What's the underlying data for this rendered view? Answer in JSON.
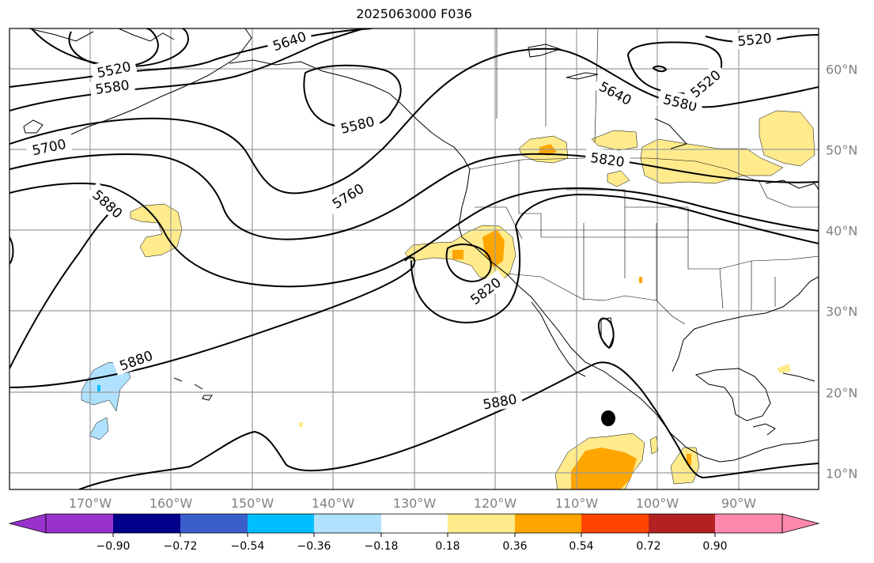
{
  "title": "2025063000 F036",
  "lon_labels": [
    "170°W",
    "160°W",
    "150°W",
    "140°W",
    "130°W",
    "120°W",
    "110°W",
    "100°W",
    "90°W"
  ],
  "lat_labels": [
    "60°N",
    "50°N",
    "40°N",
    "30°N",
    "20°N",
    "10°N"
  ],
  "colorbar": {
    "ticks": [
      "−0.90",
      "−0.72",
      "−0.54",
      "−0.36",
      "−0.18",
      "0.18",
      "0.36",
      "0.54",
      "0.72",
      "0.90"
    ],
    "colors": [
      "#9932cc",
      "#00008b",
      "#3a5fcd",
      "#00bfff",
      "#b0e2ff",
      "#ffffff",
      "#ffeb8c",
      "#ffa500",
      "#ff4500",
      "#b22222",
      "#ff89ac"
    ]
  },
  "contour_labels": [
    "5640",
    "5520",
    "5580",
    "5580",
    "5640",
    "5580",
    "5520",
    "5520",
    "5700",
    "5760",
    "5820",
    "5880",
    "5820",
    "5880",
    "5880"
  ]
}
